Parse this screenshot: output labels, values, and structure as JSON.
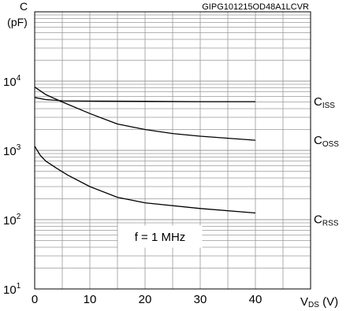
{
  "chart_data": {
    "type": "line",
    "watermark": "GIPG101215OD48A1LCVR",
    "y_axis": {
      "label_line1": "C",
      "label_line2": "(pF)",
      "scale": "log",
      "ylim": [
        10,
        100000
      ],
      "ticks": [
        {
          "base": "10",
          "exp": "1",
          "value": 10
        },
        {
          "base": "10",
          "exp": "2",
          "value": 100
        },
        {
          "base": "10",
          "exp": "3",
          "value": 1000
        },
        {
          "base": "10",
          "exp": "4",
          "value": 10000
        }
      ]
    },
    "x_axis": {
      "label_main": "V",
      "label_sub": "DS",
      "label_unit": " (V)",
      "xlim": [
        0,
        50
      ],
      "ticks": [
        "0",
        "10",
        "20",
        "30",
        "40"
      ],
      "tick_values": [
        0,
        10,
        20,
        30,
        40
      ]
    },
    "annotation": "f = 1 MHz",
    "grid": true,
    "series": [
      {
        "name": "C",
        "sub": "ISS",
        "x": [
          0,
          2,
          5,
          10,
          20,
          30,
          40
        ],
        "y": [
          5800,
          5400,
          5200,
          5150,
          5100,
          5050,
          5050
        ]
      },
      {
        "name": "C",
        "sub": "OSS",
        "x": [
          0,
          2,
          5,
          10,
          15,
          20,
          25,
          30,
          40
        ],
        "y": [
          8200,
          6400,
          5000,
          3400,
          2400,
          2000,
          1750,
          1600,
          1400
        ]
      },
      {
        "name": "C",
        "sub": "RSS",
        "x": [
          0,
          1,
          2,
          4,
          6,
          10,
          15,
          20,
          30,
          40
        ],
        "y": [
          1150,
          850,
          700,
          550,
          440,
          300,
          210,
          175,
          145,
          125
        ]
      }
    ]
  }
}
